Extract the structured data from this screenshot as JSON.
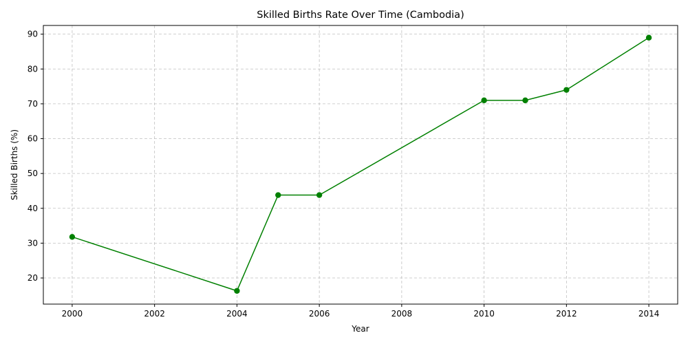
{
  "chart_data": {
    "type": "line",
    "title": "Skilled Births Rate Over Time (Cambodia)",
    "xlabel": "Year",
    "ylabel": "Skilled Births (%)",
    "xlim": [
      1999.3,
      2014.7
    ],
    "ylim": [
      12.5,
      92.5
    ],
    "x_ticks": [
      2000,
      2002,
      2004,
      2006,
      2008,
      2010,
      2012,
      2014
    ],
    "y_ticks": [
      20,
      30,
      40,
      50,
      60,
      70,
      80,
      90
    ],
    "grid": true,
    "series": [
      {
        "color": "#008000",
        "marker": "circle",
        "x": [
          2000,
          2004,
          2005,
          2006,
          2010,
          2011,
          2012,
          2014
        ],
        "y": [
          31.8,
          16.3,
          43.8,
          43.8,
          71.0,
          71.0,
          74.0,
          89.0
        ]
      }
    ]
  }
}
